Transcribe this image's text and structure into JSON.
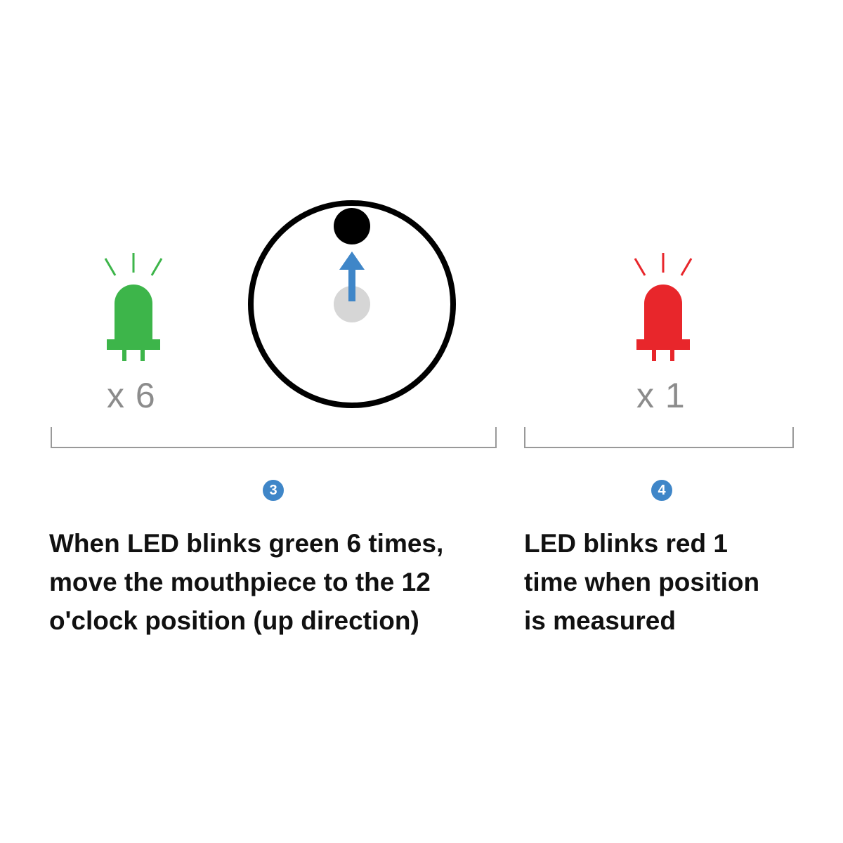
{
  "colors": {
    "green_led": "#3db54a",
    "red_led": "#e8262b",
    "arrow": "#3f86c8",
    "badge": "#3f86c8",
    "ring": "#000000",
    "center_dot": "#d6d6d6",
    "bracket": "#999999",
    "count_text": "#8c8c8c"
  },
  "icons": {
    "green_led": "green-led-icon",
    "red_led": "red-led-icon",
    "dial": "mouthpiece-dial-icon",
    "arrow": "up-arrow-icon"
  },
  "left": {
    "count": "x 6",
    "step": "3",
    "lines": [
      "When LED blinks green 6 times,",
      "move the mouthpiece to the 12",
      "o'clock position (up direction)"
    ]
  },
  "right": {
    "count": "x 1",
    "step": "4",
    "lines": [
      "LED blinks red 1",
      "time when position",
      "is measured"
    ]
  }
}
